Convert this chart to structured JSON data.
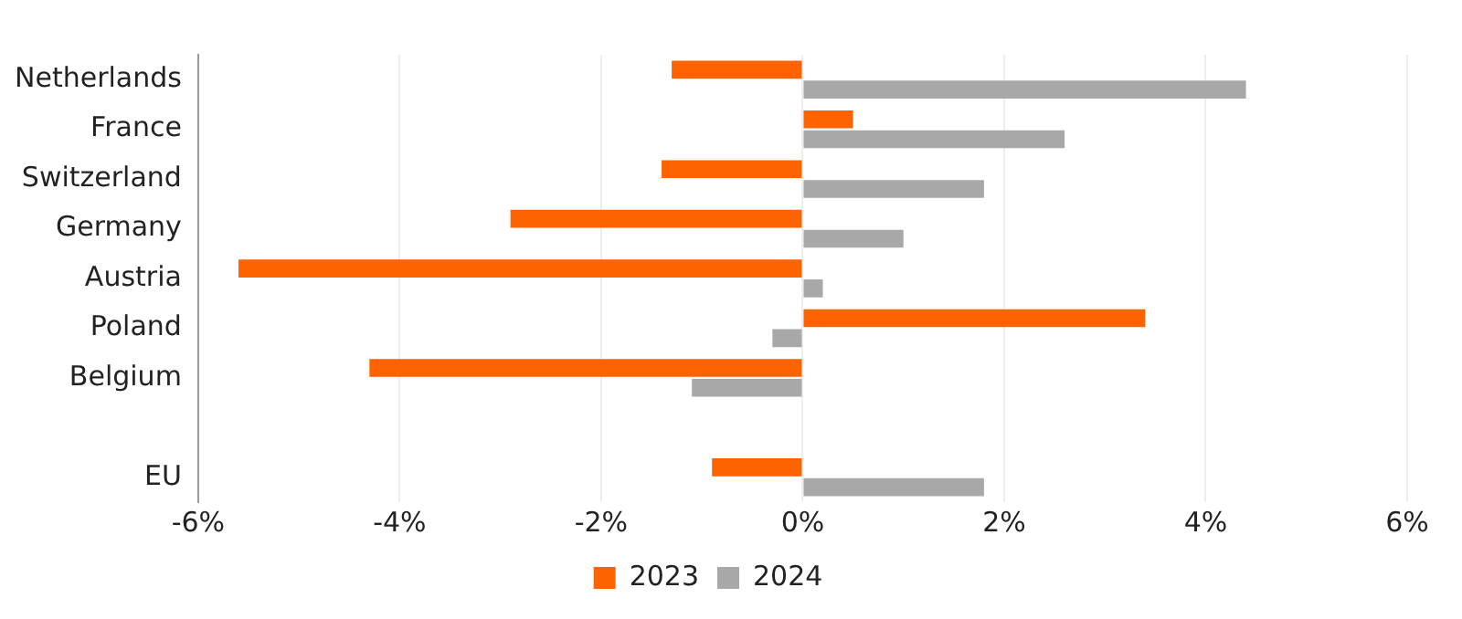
{
  "chart_data": {
    "type": "bar",
    "orientation": "horizontal",
    "categories": [
      "Netherlands",
      "France",
      "Switzerland",
      "Germany",
      "Austria",
      "Poland",
      "Belgium",
      null,
      "EU"
    ],
    "series": [
      {
        "name": "2023",
        "color": "#ff6200",
        "values": [
          -1.3,
          0.5,
          -1.4,
          -2.9,
          -5.6,
          3.4,
          -4.3,
          null,
          -0.9
        ]
      },
      {
        "name": "2024",
        "color": "#a8a8a8",
        "values": [
          4.4,
          2.6,
          1.8,
          1.0,
          0.2,
          -0.3,
          -1.1,
          null,
          1.8
        ]
      }
    ],
    "xlim": [
      -6,
      6
    ],
    "xticks": [
      {
        "value": -6,
        "label": "-6%"
      },
      {
        "value": -4,
        "label": "-4%"
      },
      {
        "value": -2,
        "label": "-2%"
      },
      {
        "value": 0,
        "label": "0%"
      },
      {
        "value": 2,
        "label": "2%"
      },
      {
        "value": 4,
        "label": "4%"
      },
      {
        "value": 6,
        "label": "6%"
      }
    ],
    "grid": "x",
    "legend": "bottom"
  }
}
